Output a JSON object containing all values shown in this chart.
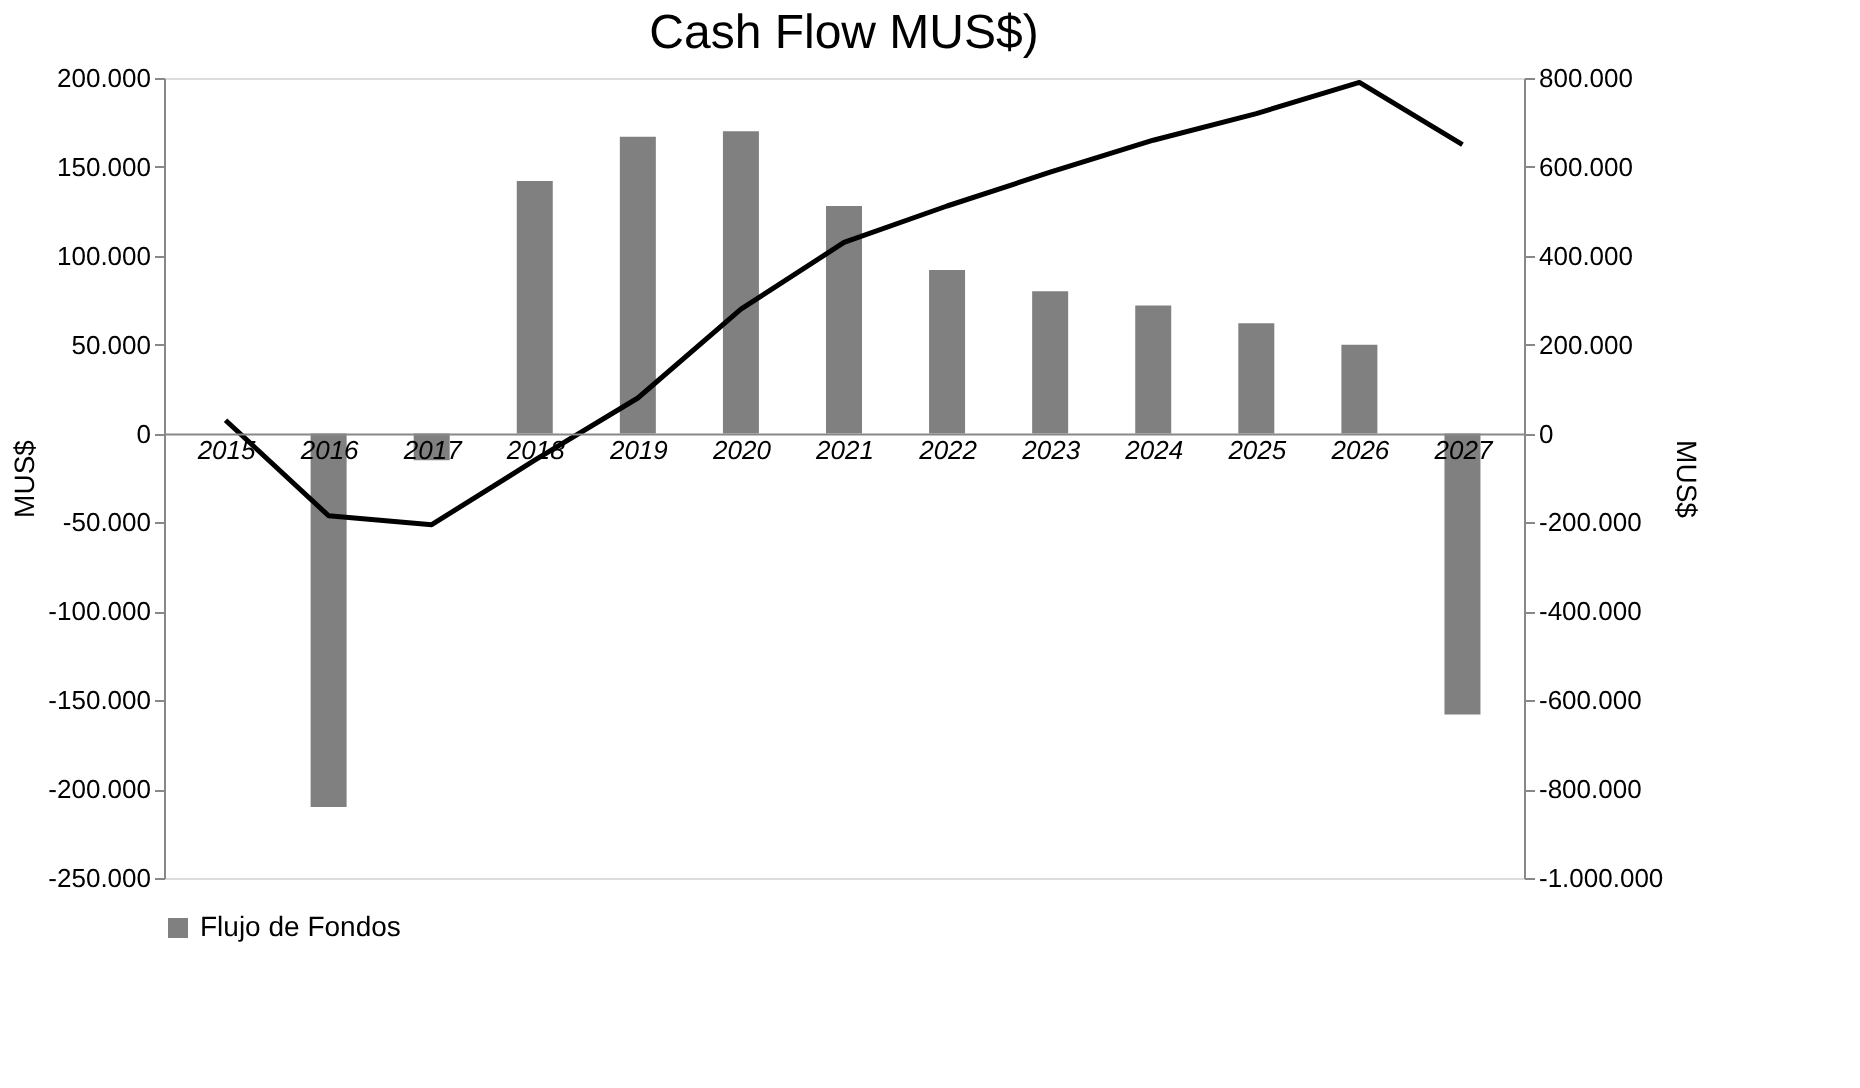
{
  "chart_data": {
    "type": "bar",
    "title": "Cash Flow MUS$)",
    "ylabel": "MUS$",
    "y2label": "MUS$",
    "categories": [
      "2015",
      "2016",
      "2017",
      "2018",
      "2019",
      "2020",
      "2021",
      "2022",
      "2023",
      "2024",
      "2025",
      "2026",
      "2027"
    ],
    "series": [
      {
        "name": "Flujo de Fondos",
        "color": "#808080",
        "values": [
          0,
          -210000,
          -15000,
          142000,
          167000,
          170000,
          128000,
          92000,
          80000,
          72000,
          62000,
          50000,
          -158000
        ]
      },
      {
        "type": "line",
        "axis": "y2",
        "color": "#000000",
        "values": [
          30000,
          -185000,
          -205000,
          -60000,
          80000,
          280000,
          430000,
          512000,
          588000,
          660000,
          720000,
          790000,
          650000
        ]
      }
    ],
    "ylim": [
      -250000,
      200000
    ],
    "yticks": [
      {
        "value": -250000,
        "label": "-250.000"
      },
      {
        "value": -200000,
        "label": "-200.000"
      },
      {
        "value": -150000,
        "label": "-150.000"
      },
      {
        "value": -100000,
        "label": "-100.000"
      },
      {
        "value": -50000,
        "label": "-50.000"
      },
      {
        "value": 0,
        "label": "0"
      },
      {
        "value": 50000,
        "label": "50.000"
      },
      {
        "value": 100000,
        "label": "100.000"
      },
      {
        "value": 150000,
        "label": "150.000"
      },
      {
        "value": 200000,
        "label": "200.000"
      }
    ],
    "y2lim": [
      -1000000,
      800000
    ],
    "y2ticks": [
      {
        "value": -1000000,
        "label": "-1.000.000"
      },
      {
        "value": -800000,
        "label": "-800.000"
      },
      {
        "value": -600000,
        "label": "-600.000"
      },
      {
        "value": -400000,
        "label": "-400.000"
      },
      {
        "value": -200000,
        "label": "-200.000"
      },
      {
        "value": 0,
        "label": "0"
      },
      {
        "value": 200000,
        "label": "200.000"
      },
      {
        "value": 400000,
        "label": "400.000"
      },
      {
        "value": 600000,
        "label": "600.000"
      },
      {
        "value": 800000,
        "label": "800.000"
      }
    ],
    "legend": "bottom",
    "grid": false,
    "marker": "none",
    "line_style": "solid"
  }
}
